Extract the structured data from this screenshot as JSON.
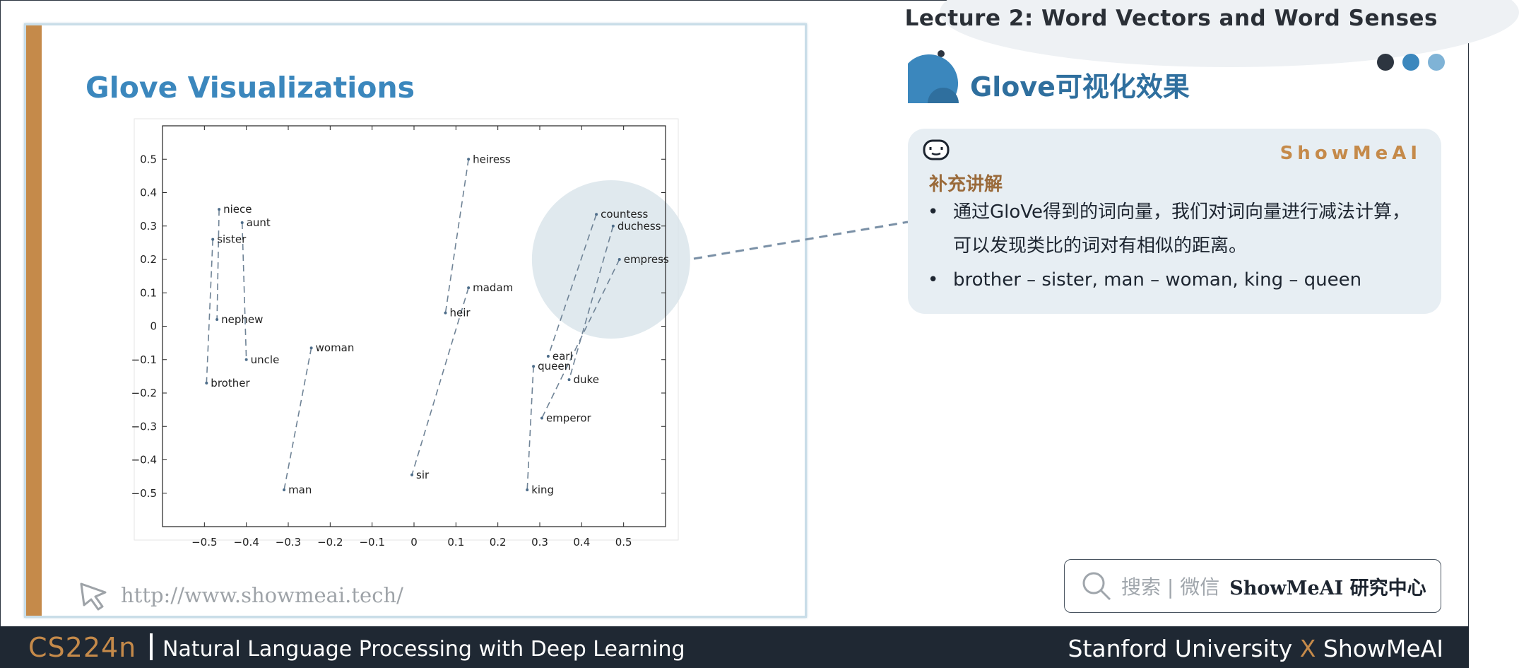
{
  "header": {
    "lecture_title": "Lecture 2:  Word Vectors and Word Senses",
    "dot_colors": [
      "#2d3540",
      "#3b87bd",
      "#7fb3d6"
    ]
  },
  "slide": {
    "title": "Glove Visualizations",
    "url": "http://www.showmeai.tech/"
  },
  "chart_data": {
    "type": "scatter",
    "title": "",
    "xlabel": "",
    "ylabel": "",
    "xlim": [
      -0.6,
      0.6
    ],
    "ylim": [
      -0.6,
      0.6
    ],
    "x_ticks": [
      "−0.5",
      "−0.4",
      "−0.3",
      "−0.2",
      "−0.1",
      "0",
      "0.1",
      "0.2",
      "0.3",
      "0.4",
      "0.5"
    ],
    "y_ticks": [
      "0.5",
      "0.4",
      "0.3",
      "0.2",
      "0.1",
      "0",
      "−0.1",
      "−0.2",
      "−0.3",
      "−0.4",
      "−0.5"
    ],
    "grid": false,
    "points": [
      {
        "label": "niece",
        "x": -0.465,
        "y": 0.35
      },
      {
        "label": "aunt",
        "x": -0.41,
        "y": 0.31
      },
      {
        "label": "sister",
        "x": -0.48,
        "y": 0.26
      },
      {
        "label": "nephew",
        "x": -0.47,
        "y": 0.02
      },
      {
        "label": "uncle",
        "x": -0.4,
        "y": -0.1
      },
      {
        "label": "brother",
        "x": -0.495,
        "y": -0.17
      },
      {
        "label": "woman",
        "x": -0.245,
        "y": -0.065
      },
      {
        "label": "man",
        "x": -0.31,
        "y": -0.49
      },
      {
        "label": "heiress",
        "x": 0.13,
        "y": 0.5
      },
      {
        "label": "madam",
        "x": 0.13,
        "y": 0.115
      },
      {
        "label": "heir",
        "x": 0.075,
        "y": 0.04
      },
      {
        "label": "sir",
        "x": -0.005,
        "y": -0.445
      },
      {
        "label": "countess",
        "x": 0.435,
        "y": 0.335
      },
      {
        "label": "duchess",
        "x": 0.475,
        "y": 0.3
      },
      {
        "label": "empress",
        "x": 0.49,
        "y": 0.2
      },
      {
        "label": "earl",
        "x": 0.32,
        "y": -0.09
      },
      {
        "label": "queen",
        "x": 0.285,
        "y": -0.12
      },
      {
        "label": "duke",
        "x": 0.37,
        "y": -0.16
      },
      {
        "label": "emperor",
        "x": 0.305,
        "y": -0.275
      },
      {
        "label": "king",
        "x": 0.27,
        "y": -0.49
      }
    ],
    "pairs": [
      [
        "niece",
        "nephew"
      ],
      [
        "aunt",
        "uncle"
      ],
      [
        "sister",
        "brother"
      ],
      [
        "woman",
        "man"
      ],
      [
        "heiress",
        "heir"
      ],
      [
        "madam",
        "sir"
      ],
      [
        "countess",
        "earl"
      ],
      [
        "duchess",
        "duke"
      ],
      [
        "empress",
        "emperor"
      ],
      [
        "queen",
        "king"
      ]
    ]
  },
  "right": {
    "title": "Glove可视化效果",
    "card": {
      "brand": "ShowMeAI",
      "label": "补充讲解",
      "bullets": [
        "通过GloVe得到的词向量，我们对词向量进行减法计算，可以发现类比的词对有相似的距离。",
        "brother – sister, man – woman, king – queen"
      ]
    },
    "search": {
      "placeholder": "搜索 | 微信",
      "brand": "ShowMeAI 研究中心"
    }
  },
  "footer": {
    "course_code": "CS224n",
    "course_name": "Natural Language Processing with Deep Learning",
    "university": "Stanford University",
    "x": "X",
    "partner": "ShowMeAI"
  }
}
